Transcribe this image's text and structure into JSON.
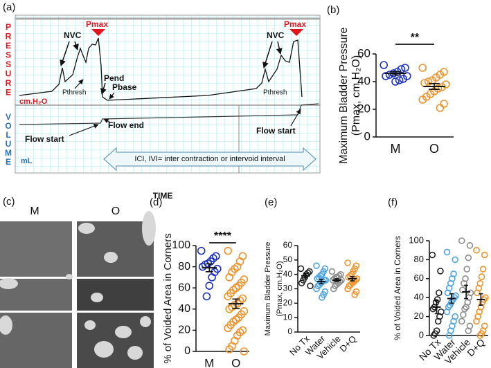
{
  "trace_panel": {
    "panel": "(a)",
    "pressure_letters": [
      "P",
      "R",
      "E",
      "S",
      "S",
      "U",
      "R",
      "E"
    ],
    "pressure_unit": "cm.H₂O",
    "volume_letters": [
      "V",
      "O",
      "L",
      "U",
      "M",
      "E"
    ],
    "volume_unit": "mL",
    "nvc": [
      "NVC",
      "NVC"
    ],
    "pmax": [
      "Pmax",
      "Pmax"
    ],
    "pend": "Pend",
    "pthresh": [
      "Pthresh",
      "Pthresh"
    ],
    "pbase": "Pbase",
    "flow_start": [
      "Flow start",
      "Flow start"
    ],
    "flow_end": "Flow end",
    "interval": "ICI, IVI= inter contraction or intervoid interval",
    "xlabel": "TIME"
  },
  "image_panel": {
    "panel": "(c)",
    "columns": [
      "M",
      "O"
    ]
  },
  "chart_data": [
    {
      "type": "strip",
      "panel": "(b)",
      "ylabel": [
        "Maximum Bladder Pressure",
        "(Pmax, cm.H₂O)"
      ],
      "ylim": [
        0,
        60
      ],
      "yticks": [
        0,
        20,
        40,
        60
      ],
      "annotation": "**",
      "series": [
        {
          "name": "M",
          "color": "#1a2fc4",
          "values": [
            52,
            50,
            49,
            47,
            46,
            45,
            44,
            44,
            42,
            41,
            40
          ],
          "mean": 46,
          "sem": 1.2
        },
        {
          "name": "O",
          "color": "#f0922a",
          "values": [
            50,
            47,
            45,
            43,
            41,
            40,
            39,
            38,
            36,
            35,
            33,
            31,
            29,
            27,
            24,
            21
          ],
          "mean": 36.5,
          "sem": 2.1
        }
      ]
    },
    {
      "type": "strip",
      "panel": "(d)",
      "ylabel": [
        "% of Voided Area in Corners"
      ],
      "ylim": [
        0,
        100
      ],
      "yticks": [
        0,
        20,
        40,
        60,
        80,
        100
      ],
      "annotation": "****",
      "series": [
        {
          "name": "M",
          "color": "#1a2fc4",
          "values": [
            95,
            90,
            88,
            85,
            83,
            82,
            80,
            78,
            75,
            70,
            62,
            52
          ],
          "mean": 79,
          "sem": 3.7
        },
        {
          "name": "O",
          "color": "#f0922a",
          "values": [
            95,
            90,
            85,
            80,
            78,
            75,
            70,
            68,
            65,
            62,
            60,
            58,
            55,
            52,
            50,
            48,
            45,
            44,
            42,
            40,
            38,
            35,
            32,
            30,
            28,
            25,
            22,
            20,
            18,
            15,
            10,
            5,
            2,
            0
          ],
          "mean": 45,
          "sem": 4.5
        }
      ]
    },
    {
      "type": "strip",
      "panel": "(e)",
      "ylabel": [
        "Maximum Bladder Pressure",
        "(Pmax, cm.H₂O)"
      ],
      "ylim": [
        0,
        60
      ],
      "yticks": [
        0,
        10,
        20,
        30,
        40,
        50,
        60
      ],
      "series": [
        {
          "name": "No Tx",
          "color": "#222222",
          "values": [
            44,
            42,
            41,
            40,
            38,
            36,
            34,
            32
          ],
          "mean": 39,
          "sem": 1.5
        },
        {
          "name": "Water",
          "color": "#4da3e0",
          "values": [
            46,
            44,
            42,
            40,
            39,
            38,
            37,
            36,
            36,
            35,
            34,
            33,
            32,
            30,
            28,
            26,
            24
          ],
          "mean": 35,
          "sem": 1.5
        },
        {
          "name": "Vehicle",
          "color": "#8c8c8c",
          "values": [
            42,
            40,
            39,
            38,
            38,
            37,
            36,
            36,
            35,
            34,
            33,
            32,
            30
          ],
          "mean": 36,
          "sem": 1
        },
        {
          "name": "D+Q",
          "color": "#f0922a",
          "values": [
            48,
            46,
            44,
            42,
            40,
            39,
            38,
            37,
            36,
            35,
            34,
            33,
            32,
            30,
            28,
            26
          ],
          "mean": 37,
          "sem": 1.5
        }
      ]
    },
    {
      "type": "strip",
      "panel": "(f)",
      "ylabel": [
        "% of Voided Area in Corners"
      ],
      "ylim": [
        0,
        100
      ],
      "yticks": [
        0,
        20,
        40,
        60,
        80,
        100
      ],
      "series": [
        {
          "name": "No Tx",
          "color": "#222222",
          "values": [
            85,
            68,
            45,
            38,
            35,
            30,
            28,
            25,
            20,
            15,
            5,
            2,
            0
          ],
          "mean": 30,
          "sem": 7
        },
        {
          "name": "Water",
          "color": "#4da3e0",
          "values": [
            88,
            80,
            65,
            60,
            55,
            50,
            45,
            42,
            40,
            38,
            35,
            32,
            30,
            25,
            20,
            15,
            10,
            5,
            0
          ],
          "mean": 39,
          "sem": 5
        },
        {
          "name": "Vehicle",
          "color": "#8c8c8c",
          "values": [
            100,
            95,
            82,
            70,
            60,
            55,
            48,
            45,
            40,
            35,
            30,
            28,
            22,
            15,
            10,
            5
          ],
          "mean": 46,
          "sem": 7
        },
        {
          "name": "D+Q",
          "color": "#f0922a",
          "values": [
            90,
            85,
            70,
            62,
            55,
            50,
            45,
            40,
            38,
            35,
            30,
            25,
            20,
            15,
            10,
            5,
            2,
            0
          ],
          "mean": 38,
          "sem": 6
        }
      ]
    }
  ]
}
